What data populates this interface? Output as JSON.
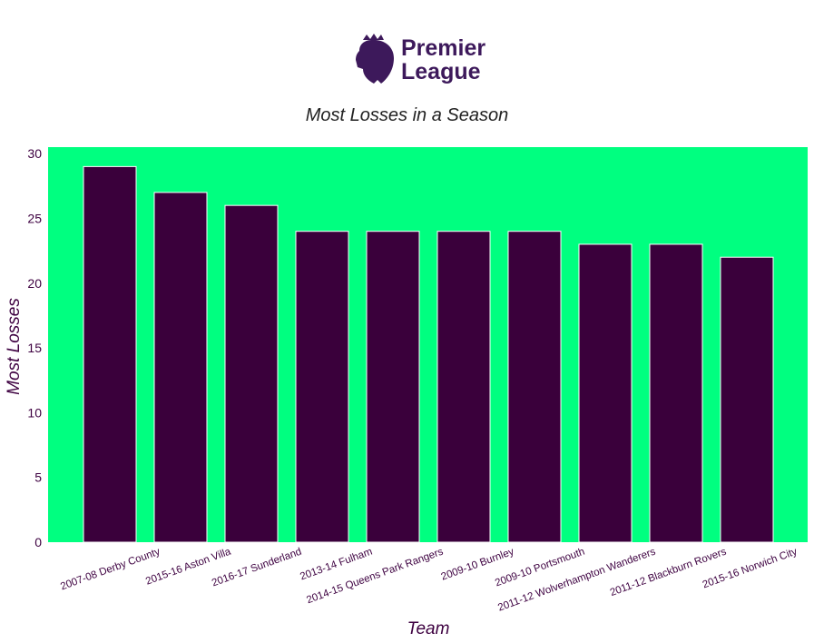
{
  "logo": {
    "brand_line1": "Premier",
    "brand_line2": "League",
    "icon": "lion-crest-icon"
  },
  "colors": {
    "background": "#00ff80",
    "bar": "#3a003b",
    "bar_edge": "#ffffff",
    "text": "#3d0040",
    "logo": "#3d195b"
  },
  "chart_data": {
    "type": "bar",
    "title": "Most Losses in a Season",
    "xlabel": "Team",
    "ylabel": "Most Losses",
    "categories": [
      "2007-08 Derby County",
      "2015-16 Aston Villa",
      "2016-17 Sunderland",
      "2013-14 Fulham",
      "2014-15 Queens Park Rangers",
      "2009-10 Burnley",
      "2009-10 Portsmouth",
      "2011-12 Wolverhampton Wanderers",
      "2011-12 Blackburn Rovers",
      "2015-16 Norwich City"
    ],
    "values": [
      29,
      27,
      26,
      24,
      24,
      24,
      24,
      23,
      23,
      22
    ],
    "ylim": [
      0,
      30.5
    ],
    "yticks": [
      0,
      5,
      10,
      15,
      20,
      25,
      30
    ],
    "grid": false,
    "legend": "none"
  }
}
